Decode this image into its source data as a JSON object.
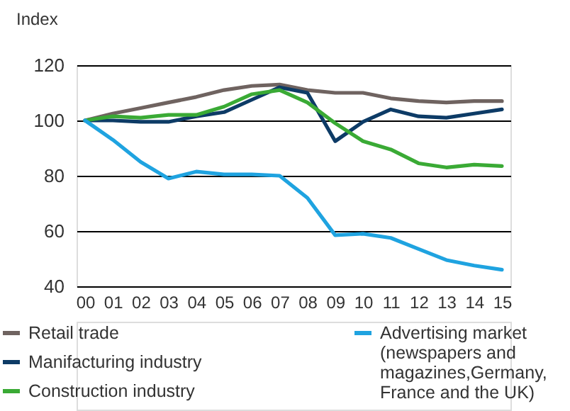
{
  "chart_data": {
    "type": "line",
    "ylabel": "Index",
    "categories": [
      "00",
      "01",
      "02",
      "03",
      "04",
      "05",
      "06",
      "07",
      "08",
      "09",
      "10",
      "11",
      "12",
      "13",
      "14",
      "15"
    ],
    "series": [
      {
        "name": "Retail trade",
        "color": "#6f6360",
        "values": [
          100,
          102.5,
          104.5,
          106.5,
          108.5,
          111,
          112.5,
          113,
          111,
          110,
          110,
          108,
          107,
          106.5,
          107,
          107
        ]
      },
      {
        "name": "Manifacturing industry",
        "color": "#0d3b66",
        "values": [
          100,
          100,
          99.5,
          99.5,
          101.5,
          103,
          107.5,
          112,
          110,
          92.5,
          99.5,
          104,
          101.5,
          101,
          102.5,
          104
        ]
      },
      {
        "name": "Construction industry",
        "color": "#3aaa35",
        "values": [
          100,
          101.5,
          101,
          102,
          102,
          105,
          109.5,
          111,
          106.5,
          99,
          92.5,
          89.5,
          84.5,
          83,
          84,
          83.5
        ]
      },
      {
        "name": "Advertising market (newspapers and magazines,Germany, France and the UK)",
        "color": "#1fa3e0",
        "values": [
          100,
          93,
          85,
          79,
          81.5,
          80.5,
          80.5,
          80,
          72,
          58.5,
          59,
          57.5,
          53.5,
          49.5,
          47.5,
          46
        ]
      }
    ],
    "ylim": [
      40,
      120
    ],
    "yticks": [
      40,
      60,
      80,
      100,
      120
    ],
    "grid": "y",
    "legend": "bottom",
    "marker": "none",
    "line_style": "solid"
  }
}
